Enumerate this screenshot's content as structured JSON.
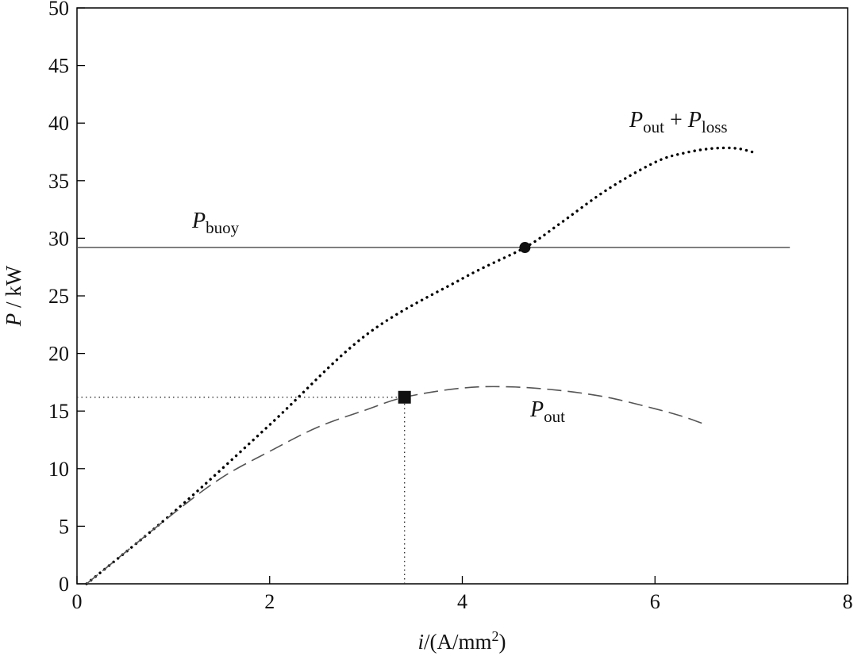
{
  "chart_data": {
    "type": "line",
    "xlabel": {
      "var": "i",
      "unit": "/(A/mm",
      "sup": "2",
      "close": ")"
    },
    "ylabel": {
      "var": "P",
      "unit": " / kW"
    },
    "xlim": [
      0,
      8
    ],
    "ylim": [
      0,
      50
    ],
    "x_ticks": [
      0,
      2,
      4,
      6,
      8
    ],
    "y_ticks": [
      0,
      5,
      10,
      15,
      20,
      25,
      30,
      35,
      40,
      45,
      50
    ],
    "grid": false,
    "series": [
      {
        "name": "P_buoy",
        "style": "solid",
        "color": "#555555",
        "x": [
          0,
          7.4
        ],
        "y": [
          29.2,
          29.2
        ]
      },
      {
        "name": "P_out + P_loss",
        "style": "dotted",
        "color": "#000000",
        "x": [
          0.1,
          1,
          2,
          3,
          4,
          4.65,
          5,
          5.5,
          6,
          6.3,
          6.6,
          6.85,
          7.05
        ],
        "y": [
          0,
          6.2,
          13.8,
          21.6,
          26.5,
          29.2,
          31.2,
          34.2,
          36.6,
          37.4,
          37.8,
          37.8,
          37.4
        ]
      },
      {
        "name": "P_out",
        "style": "dashed",
        "color": "#555555",
        "x": [
          0.1,
          1,
          1.5,
          2,
          2.5,
          3,
          3.4,
          4,
          4.5,
          5,
          5.5,
          6,
          6.3,
          6.5
        ],
        "y": [
          0,
          6.1,
          9.2,
          11.5,
          13.6,
          15.1,
          16.2,
          17.0,
          17.1,
          16.8,
          16.2,
          15.2,
          14.5,
          13.9
        ]
      }
    ],
    "markers": [
      {
        "name": "intersection-point",
        "shape": "circle",
        "x": 4.65,
        "y": 29.2
      },
      {
        "name": "operating-point",
        "shape": "square",
        "x": 3.4,
        "y": 16.2
      }
    ],
    "reference_lines": [
      {
        "name": "h-ref-line",
        "x": [
          0,
          3.4
        ],
        "y": [
          16.2,
          16.2
        ]
      },
      {
        "name": "v-ref-line",
        "x": [
          3.4,
          3.4
        ],
        "y": [
          0,
          16.2
        ]
      }
    ],
    "annotations": {
      "buoy": {
        "var": "P",
        "sub": "buoy"
      },
      "sum": {
        "var1": "P",
        "sub1": "out",
        "plus": " + ",
        "var2": "P",
        "sub2": "loss"
      },
      "out": {
        "var": "P",
        "sub": "out"
      }
    }
  }
}
